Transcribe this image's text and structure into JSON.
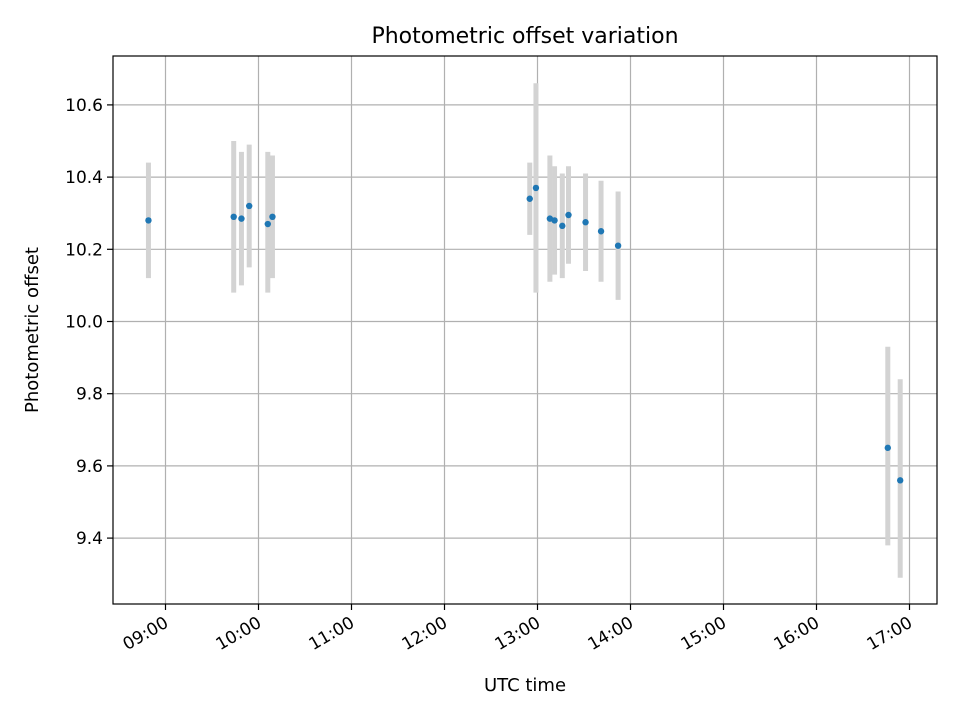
{
  "chart_data": {
    "type": "scatter",
    "title": "Photometric offset variation",
    "xlabel": "UTC time",
    "ylabel": "Photometric offset",
    "x_tick_labels": [
      "09:00",
      "10:00",
      "11:00",
      "12:00",
      "13:00",
      "14:00",
      "15:00",
      "16:00",
      "17:00"
    ],
    "y_tick_labels": [
      "9.4",
      "9.6",
      "9.8",
      "10.0",
      "10.2",
      "10.4",
      "10.6"
    ],
    "ylim": [
      9.23,
      10.74
    ],
    "grid": true,
    "series": [
      {
        "color": "#1f77b4",
        "error_bar_color": "#d3d3d3",
        "points": [
          {
            "x": "08:49",
            "y": 10.28,
            "ylow": 10.12,
            "yhigh": 10.44
          },
          {
            "x": "09:44",
            "y": 10.29,
            "ylow": 10.08,
            "yhigh": 10.5
          },
          {
            "x": "09:49",
            "y": 10.285,
            "ylow": 10.1,
            "yhigh": 10.47
          },
          {
            "x": "09:54",
            "y": 10.32,
            "ylow": 10.15,
            "yhigh": 10.49
          },
          {
            "x": "10:06",
            "y": 10.27,
            "ylow": 10.08,
            "yhigh": 10.47
          },
          {
            "x": "10:09",
            "y": 10.29,
            "ylow": 10.12,
            "yhigh": 10.46
          },
          {
            "x": "12:55",
            "y": 10.34,
            "ylow": 10.24,
            "yhigh": 10.44
          },
          {
            "x": "12:59",
            "y": 10.37,
            "ylow": 10.08,
            "yhigh": 10.66
          },
          {
            "x": "13:08",
            "y": 10.285,
            "ylow": 10.11,
            "yhigh": 10.46
          },
          {
            "x": "13:11",
            "y": 10.28,
            "ylow": 10.13,
            "yhigh": 10.43
          },
          {
            "x": "13:16",
            "y": 10.265,
            "ylow": 10.12,
            "yhigh": 10.41
          },
          {
            "x": "13:20",
            "y": 10.295,
            "ylow": 10.16,
            "yhigh": 10.43
          },
          {
            "x": "13:31",
            "y": 10.275,
            "ylow": 10.14,
            "yhigh": 10.41
          },
          {
            "x": "13:41",
            "y": 10.25,
            "ylow": 10.11,
            "yhigh": 10.39
          },
          {
            "x": "13:52",
            "y": 10.21,
            "ylow": 10.06,
            "yhigh": 10.36
          },
          {
            "x": "16:46",
            "y": 9.65,
            "ylow": 9.38,
            "yhigh": 9.93
          },
          {
            "x": "16:54",
            "y": 9.56,
            "ylow": 9.29,
            "yhigh": 9.84
          }
        ]
      }
    ]
  }
}
